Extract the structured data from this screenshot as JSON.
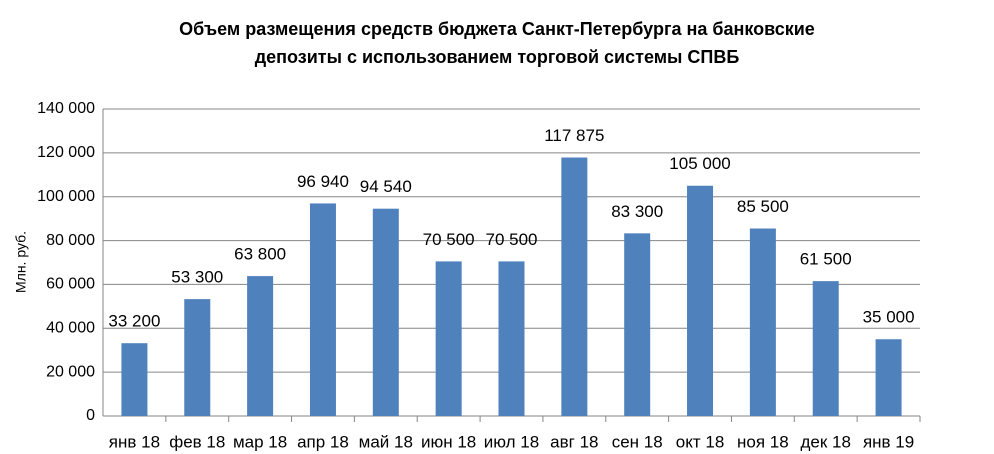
{
  "chart_data": {
    "type": "bar",
    "title": [
      "Объем размещения средств бюджета Санкт-Петербурга на банковские",
      "депозиты с использованием торговой системы СПВБ"
    ],
    "y_label": "Млн. руб.",
    "categories": [
      "янв 18",
      "фев 18",
      "мар 18",
      "апр 18",
      "май 18",
      "июн 18",
      "июл 18",
      "авг 18",
      "сен 18",
      "окт 18",
      "ноя 18",
      "дек 18",
      "янв 19"
    ],
    "values": [
      33200,
      53300,
      63800,
      96940,
      94540,
      70500,
      70500,
      117875,
      83300,
      105000,
      85500,
      61500,
      35000
    ],
    "value_labels": [
      "33 200",
      "53 300",
      "63 800",
      "96 940",
      "94 540",
      "70 500",
      "70 500",
      "117 875",
      "83 300",
      "105 000",
      "85 500",
      "61 500",
      "35 000"
    ],
    "color": "#4f81bd",
    "ylim": [
      0,
      140000
    ],
    "yticks": [
      0,
      {
        "value": 20000,
        "label": "20 000"
      },
      {
        "value": 40000,
        "label": "40 000"
      },
      {
        "value": 60000,
        "label": "60 000"
      },
      {
        "value": 80000,
        "label": "80 000"
      },
      {
        "value": 100000,
        "label": "100 000"
      },
      {
        "value": 120000,
        "label": "120 000"
      },
      {
        "value": 140000,
        "label": "140 000"
      }
    ],
    "grid": true
  }
}
